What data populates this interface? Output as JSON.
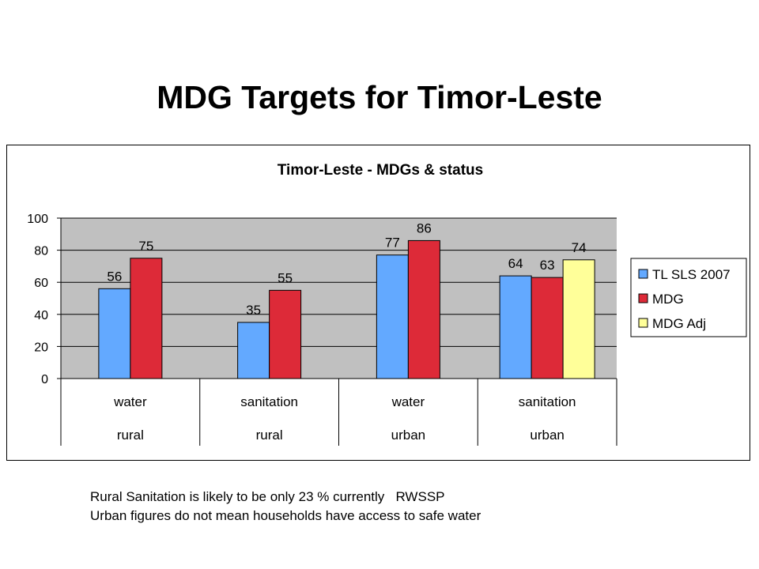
{
  "slide": {
    "title": "MDG Targets for Timor-Leste",
    "notes": [
      "Rural Sanitation is likely to be only 23 % currently   RWSSP",
      "Urban figures do not mean households have access to safe water"
    ]
  },
  "chart_data": {
    "type": "bar",
    "title": "Timor-Leste - MDGs & status",
    "xlabel": "",
    "ylabel": "",
    "ylim": [
      0,
      100
    ],
    "yticks": [
      0,
      20,
      40,
      60,
      80,
      100
    ],
    "grid": true,
    "legend_position": "right",
    "categories": [
      {
        "top": "water",
        "bottom": "rural"
      },
      {
        "top": "sanitation",
        "bottom": "rural"
      },
      {
        "top": "water",
        "bottom": "urban"
      },
      {
        "top": "sanitation",
        "bottom": "urban"
      }
    ],
    "series": [
      {
        "name": "TL SLS 2007",
        "color": "#63a9ff",
        "values": [
          56,
          35,
          77,
          64
        ]
      },
      {
        "name": "MDG",
        "color": "#dd2a38",
        "values": [
          75,
          55,
          86,
          63
        ]
      },
      {
        "name": "MDG Adj",
        "color": "#ffff99",
        "values": [
          null,
          null,
          null,
          74
        ]
      }
    ],
    "plot_background": "#c0c0c0"
  }
}
